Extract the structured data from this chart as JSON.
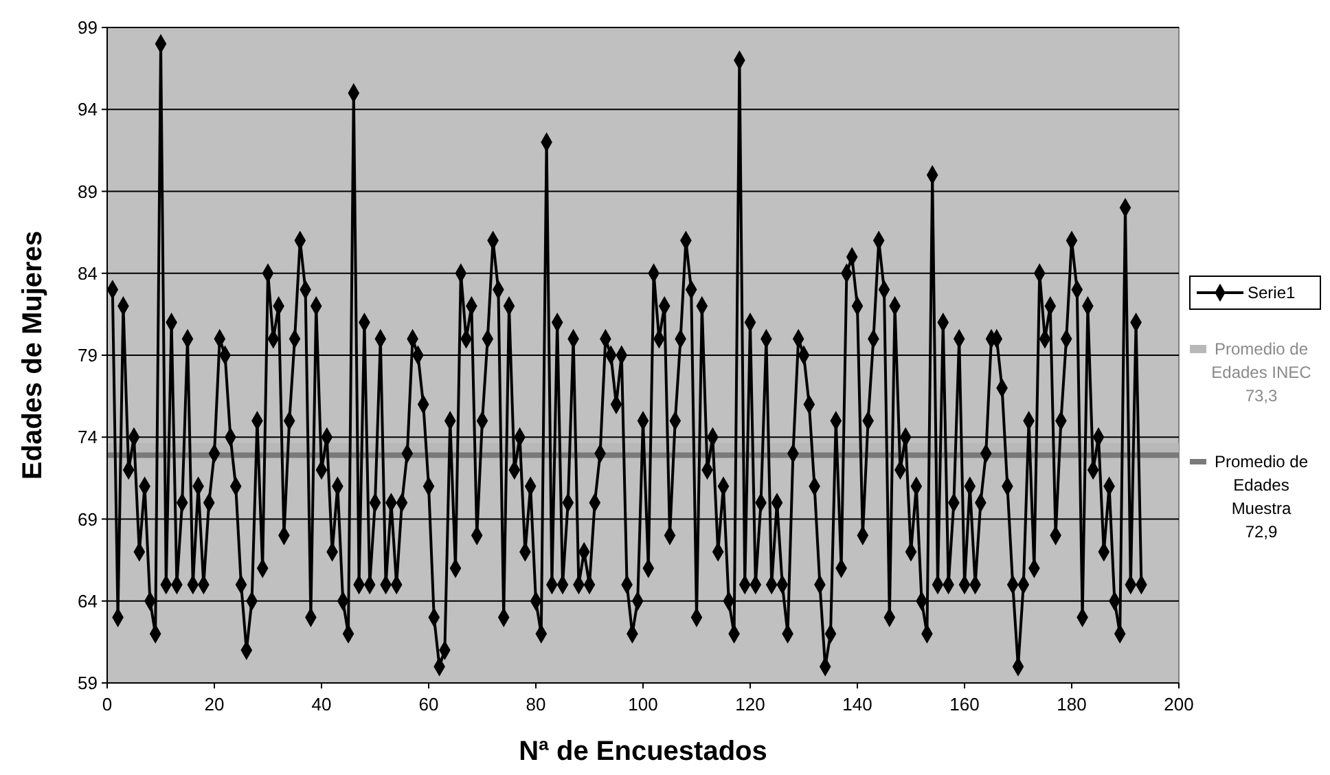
{
  "chart_data": {
    "type": "line",
    "xlabel": "Nª de Encuestados",
    "ylabel": "Edades de Mujeres",
    "x": [
      1,
      2,
      3,
      4,
      5,
      6,
      7,
      8,
      9,
      10,
      11,
      12,
      13,
      14,
      15,
      16,
      17,
      18,
      19,
      20,
      21,
      22,
      23,
      24,
      25,
      26,
      27,
      28,
      29,
      30,
      31,
      32,
      33,
      34,
      35,
      36,
      37,
      38,
      39,
      40,
      41,
      42,
      43,
      44,
      45,
      46,
      47,
      48,
      49,
      50,
      51,
      52,
      53,
      54,
      55,
      56,
      57,
      58,
      59,
      60,
      61,
      62,
      63,
      64,
      65,
      66,
      67,
      68,
      69,
      70,
      71,
      72,
      73,
      74,
      75,
      76,
      77,
      78,
      79,
      80,
      81,
      82,
      83,
      84,
      85,
      86,
      87,
      88,
      89,
      90,
      91,
      92,
      93,
      94,
      95,
      96,
      97,
      98,
      99,
      100,
      101,
      102,
      103,
      104,
      105,
      106,
      107,
      108,
      109,
      110,
      111,
      112,
      113,
      114,
      115,
      116,
      117,
      118,
      119,
      120,
      121,
      122,
      123,
      124,
      125,
      126,
      127,
      128,
      129,
      130,
      131,
      132,
      133,
      134,
      135,
      136,
      137,
      138,
      139,
      140,
      141,
      142,
      143,
      144,
      145,
      146,
      147,
      148,
      149,
      150,
      151,
      152,
      153,
      154,
      155,
      156,
      157,
      158,
      159,
      160,
      161,
      162,
      163,
      164,
      165,
      166,
      167,
      168,
      169,
      170,
      171,
      172,
      173,
      174,
      175,
      176,
      177,
      178,
      179,
      180,
      181,
      182,
      183,
      184,
      185,
      186,
      187,
      188,
      189,
      190,
      191,
      192,
      193
    ],
    "series": [
      {
        "name": "Serie1",
        "color": "#000000",
        "values": [
          83,
          63,
          82,
          72,
          74,
          67,
          71,
          64,
          62,
          98,
          65,
          81,
          65,
          70,
          80,
          65,
          71,
          65,
          70,
          73,
          80,
          79,
          74,
          71,
          65,
          61,
          64,
          75,
          66,
          84,
          80,
          82,
          68,
          75,
          80,
          86,
          83,
          63,
          82,
          72,
          74,
          67,
          71,
          64,
          62,
          95,
          65,
          81,
          65,
          70,
          80,
          65,
          70,
          65,
          70,
          73,
          80,
          79,
          76,
          71,
          63,
          60,
          61,
          75,
          66,
          84,
          80,
          82,
          68,
          75,
          80,
          86,
          83,
          63,
          82,
          72,
          74,
          67,
          71,
          64,
          62,
          92,
          65,
          81,
          65,
          70,
          80,
          65,
          67,
          65,
          70,
          73,
          80,
          79,
          76,
          79,
          65,
          62,
          64,
          75,
          66,
          84,
          80,
          82,
          68,
          75,
          80,
          86,
          83,
          63,
          82,
          72,
          74,
          67,
          71,
          64,
          62,
          97,
          65,
          81,
          65,
          70,
          80,
          65,
          70,
          65,
          62,
          73,
          80,
          79,
          76,
          71,
          65,
          60,
          62,
          75,
          66,
          84,
          85,
          82,
          68,
          75,
          80,
          86,
          83,
          63,
          82,
          72,
          74,
          67,
          71,
          64,
          62,
          90,
          65,
          81,
          65,
          70,
          80,
          65,
          71,
          65,
          70,
          73,
          80,
          80,
          77,
          71,
          65,
          60,
          65,
          75,
          66,
          84,
          80,
          82,
          68,
          75,
          80,
          86,
          83,
          63,
          82,
          72,
          74,
          67,
          71,
          64,
          62,
          88,
          65,
          81,
          65
        ]
      }
    ],
    "xlim": [
      0,
      200
    ],
    "xticks": [
      0,
      20,
      40,
      60,
      80,
      100,
      120,
      140,
      160,
      180,
      200
    ],
    "ylim": [
      59,
      99
    ],
    "yticks": [
      59,
      64,
      69,
      74,
      79,
      84,
      89,
      94,
      99
    ],
    "grid": "y",
    "legend": "right",
    "marker": "diamond",
    "line_style": "solid",
    "ref_lines": [
      {
        "axis": "y",
        "value": 73.3,
        "label": "Promedio de Edades INEC 73,3",
        "color": "#b8b8b8"
      },
      {
        "axis": "y",
        "value": 72.9,
        "label": "Promedio de Edades Muestra 72,9",
        "color": "#7a7a7a"
      }
    ]
  }
}
